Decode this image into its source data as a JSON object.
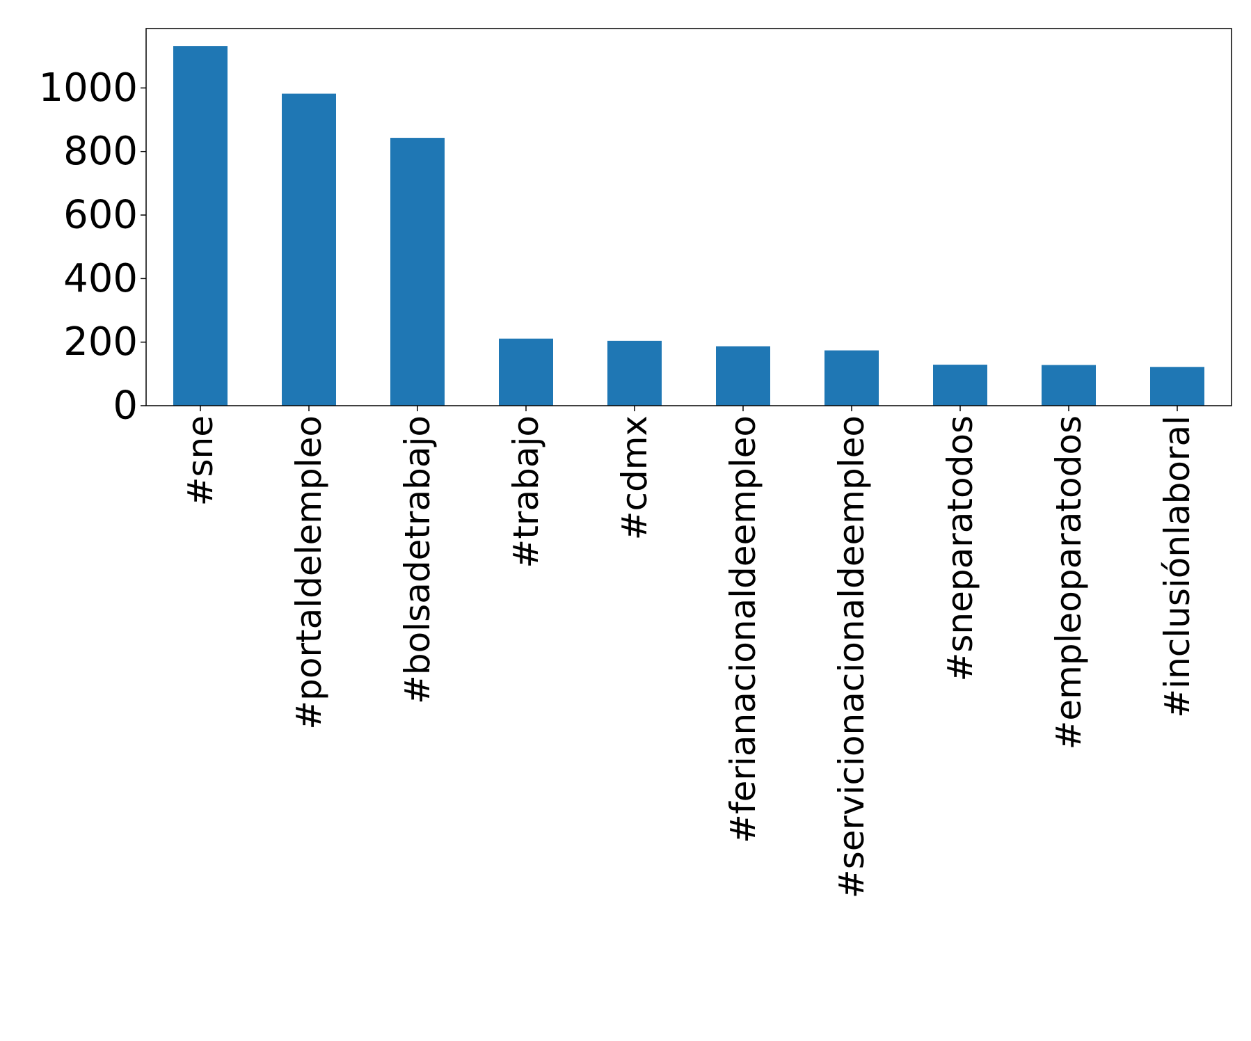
{
  "chart_data": {
    "type": "bar",
    "categories": [
      "#sne",
      "#portaldelempleo",
      "#bolsadetrabajo",
      "#trabajo",
      "#cdmx",
      "#ferianacionaldeempleo",
      "#servicionacionaldeempleo",
      "#sneparatodos",
      "#empleoparatodos",
      "#inclusiónlaboral"
    ],
    "values": [
      1132,
      982,
      843,
      211,
      204,
      187,
      174,
      129,
      128,
      122
    ],
    "ylim": [
      0,
      1187
    ],
    "yticks": [
      0,
      200,
      400,
      600,
      800,
      1000
    ],
    "bar_color": "#1f77b4",
    "grid": false,
    "title": "",
    "xlabel": "",
    "ylabel": ""
  }
}
